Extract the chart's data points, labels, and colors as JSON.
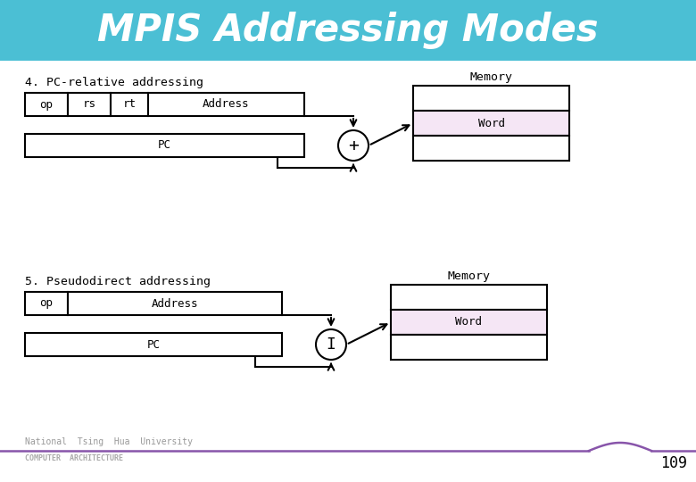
{
  "title": "MPIS Addressing Modes",
  "title_bg": "#4BBFD4",
  "title_color": "white",
  "bg_color": "white",
  "section1_label": "4. PC-relative addressing",
  "section2_label": "5. Pseudodirect addressing",
  "memory_label": "Memory",
  "word_label": "Word",
  "word_fill": "#F5E6F5",
  "pc_label": "PC",
  "op_label": "op",
  "rs_label": "rs",
  "rt_label": "rt",
  "address_label": "Address",
  "plus_symbol": "+",
  "pipe_symbol": "I",
  "footer_text1": "National  Tsing  Hua  University",
  "footer_text2": "COMPUTER  ARCHITECTURE",
  "page_number": "109",
  "footer_line_color": "#8855AA"
}
